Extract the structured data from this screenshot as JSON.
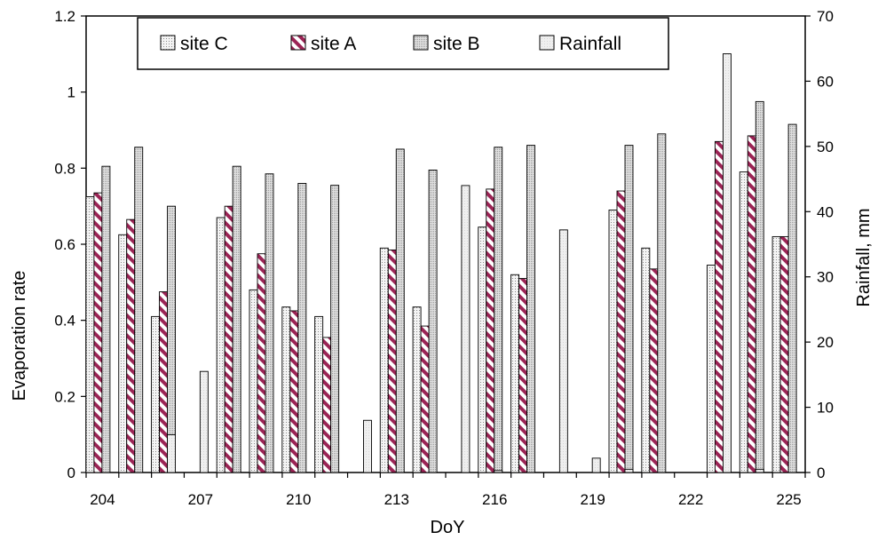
{
  "chart_data": {
    "type": "bar",
    "title": "",
    "xlabel": "DoY",
    "ylabel": "Evaporation rate",
    "y2label": "Rainfall, mm",
    "ylim": [
      0,
      1.2
    ],
    "y2lim": [
      0,
      70
    ],
    "yticks": [
      "0",
      "0.2",
      "0.4",
      "0.6",
      "0.8",
      "1",
      "1.2"
    ],
    "y2ticks": [
      "0",
      "10",
      "20",
      "30",
      "40",
      "50",
      "60",
      "70"
    ],
    "categories": [
      204,
      205,
      206,
      207,
      208,
      209,
      210,
      211,
      212,
      213,
      214,
      215,
      216,
      217,
      218,
      219,
      220,
      221,
      222,
      223,
      224,
      225
    ],
    "xtick_labels": [
      "204",
      "207",
      "210",
      "213",
      "216",
      "219",
      "222",
      "225"
    ],
    "legend_position": "top",
    "series": [
      {
        "name": "site C",
        "axis": "left",
        "values": [
          0.725,
          0.625,
          0.41,
          null,
          0.67,
          0.48,
          0.435,
          0.41,
          null,
          0.59,
          0.435,
          null,
          0.645,
          0.52,
          null,
          null,
          0.69,
          0.59,
          null,
          0.545,
          0.79,
          0.62
        ]
      },
      {
        "name": "site A",
        "axis": "left",
        "values": [
          0.735,
          0.665,
          0.475,
          null,
          0.7,
          0.575,
          0.425,
          0.355,
          null,
          0.585,
          0.385,
          null,
          0.745,
          0.51,
          null,
          null,
          0.74,
          0.535,
          null,
          0.87,
          0.885,
          0.62
        ]
      },
      {
        "name": "site B",
        "axis": "left",
        "values": [
          0.805,
          0.855,
          0.7,
          null,
          0.805,
          0.785,
          0.76,
          0.755,
          null,
          0.85,
          0.795,
          null,
          0.855,
          0.86,
          null,
          null,
          0.86,
          0.89,
          null,
          null,
          0.975,
          0.915
        ]
      },
      {
        "name": "Rainfall",
        "axis": "right",
        "values": [
          0,
          0,
          5.8,
          15.5,
          0,
          0,
          0,
          0,
          8,
          0,
          0,
          44,
          0.3,
          0,
          37.2,
          2.2,
          0.5,
          0,
          0,
          64.2,
          0.5,
          0
        ]
      }
    ],
    "colors": {
      "siteC": "#f2f2f2",
      "siteA": "#9b2455",
      "siteB": "#e4e4e4",
      "rainfall": "#eeeeee",
      "edge": "#000000"
    }
  }
}
